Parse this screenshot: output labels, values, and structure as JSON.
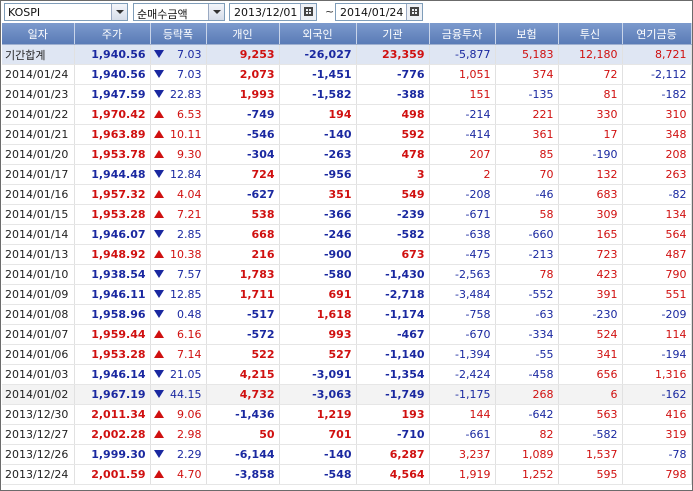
{
  "toolbar": {
    "market": "KOSPI",
    "metric": "순매수금액",
    "date_from": "2013/12/01",
    "date_to": "2014/01/24",
    "range_separator": "~"
  },
  "columns": [
    "일자",
    "주가",
    "등락폭",
    "개인",
    "외국인",
    "기관",
    "금융투자",
    "보험",
    "투신",
    "연기금등"
  ],
  "summary": {
    "label": "기간합계",
    "price": "1,940.56",
    "dir": "down",
    "change": "7.03",
    "individual": "9,253",
    "foreign": "-26,027",
    "institution": "23,359",
    "fin": "-5,877",
    "insurance": "5,183",
    "trust": "12,180",
    "pension": "8,721"
  },
  "rows": [
    {
      "date": "2014/01/24",
      "price": "1,940.56",
      "dir": "down",
      "change": "7.03",
      "individual": "2,073",
      "foreign": "-1,451",
      "institution": "-776",
      "fin": "1,051",
      "insurance": "374",
      "trust": "72",
      "pension": "-2,112"
    },
    {
      "date": "2014/01/23",
      "price": "1,947.59",
      "dir": "down",
      "change": "22.83",
      "individual": "1,993",
      "foreign": "-1,582",
      "institution": "-388",
      "fin": "151",
      "insurance": "-135",
      "trust": "81",
      "pension": "-182"
    },
    {
      "date": "2014/01/22",
      "price": "1,970.42",
      "dir": "up",
      "change": "6.53",
      "individual": "-749",
      "foreign": "194",
      "institution": "498",
      "fin": "-214",
      "insurance": "221",
      "trust": "330",
      "pension": "310"
    },
    {
      "date": "2014/01/21",
      "price": "1,963.89",
      "dir": "up",
      "change": "10.11",
      "individual": "-546",
      "foreign": "-140",
      "institution": "592",
      "fin": "-414",
      "insurance": "361",
      "trust": "17",
      "pension": "348"
    },
    {
      "date": "2014/01/20",
      "price": "1,953.78",
      "dir": "up",
      "change": "9.30",
      "individual": "-304",
      "foreign": "-263",
      "institution": "478",
      "fin": "207",
      "insurance": "85",
      "trust": "-190",
      "pension": "208"
    },
    {
      "date": "2014/01/17",
      "price": "1,944.48",
      "dir": "down",
      "change": "12.84",
      "individual": "724",
      "foreign": "-956",
      "institution": "3",
      "fin": "2",
      "insurance": "70",
      "trust": "132",
      "pension": "263"
    },
    {
      "date": "2014/01/16",
      "price": "1,957.32",
      "dir": "up",
      "change": "4.04",
      "individual": "-627",
      "foreign": "351",
      "institution": "549",
      "fin": "-208",
      "insurance": "-46",
      "trust": "683",
      "pension": "-82"
    },
    {
      "date": "2014/01/15",
      "price": "1,953.28",
      "dir": "up",
      "change": "7.21",
      "individual": "538",
      "foreign": "-366",
      "institution": "-239",
      "fin": "-671",
      "insurance": "58",
      "trust": "309",
      "pension": "134"
    },
    {
      "date": "2014/01/14",
      "price": "1,946.07",
      "dir": "down",
      "change": "2.85",
      "individual": "668",
      "foreign": "-246",
      "institution": "-582",
      "fin": "-638",
      "insurance": "-660",
      "trust": "165",
      "pension": "564"
    },
    {
      "date": "2014/01/13",
      "price": "1,948.92",
      "dir": "up",
      "change": "10.38",
      "individual": "216",
      "foreign": "-900",
      "institution": "673",
      "fin": "-475",
      "insurance": "-213",
      "trust": "723",
      "pension": "487"
    },
    {
      "date": "2014/01/10",
      "price": "1,938.54",
      "dir": "down",
      "change": "7.57",
      "individual": "1,783",
      "foreign": "-580",
      "institution": "-1,430",
      "fin": "-2,563",
      "insurance": "78",
      "trust": "423",
      "pension": "790"
    },
    {
      "date": "2014/01/09",
      "price": "1,946.11",
      "dir": "down",
      "change": "12.85",
      "individual": "1,711",
      "foreign": "691",
      "institution": "-2,718",
      "fin": "-3,484",
      "insurance": "-552",
      "trust": "391",
      "pension": "551"
    },
    {
      "date": "2014/01/08",
      "price": "1,958.96",
      "dir": "down",
      "change": "0.48",
      "individual": "-517",
      "foreign": "1,618",
      "institution": "-1,174",
      "fin": "-758",
      "insurance": "-63",
      "trust": "-230",
      "pension": "-209"
    },
    {
      "date": "2014/01/07",
      "price": "1,959.44",
      "dir": "up",
      "change": "6.16",
      "individual": "-572",
      "foreign": "993",
      "institution": "-467",
      "fin": "-670",
      "insurance": "-334",
      "trust": "524",
      "pension": "114"
    },
    {
      "date": "2014/01/06",
      "price": "1,953.28",
      "dir": "up",
      "change": "7.14",
      "individual": "522",
      "foreign": "527",
      "institution": "-1,140",
      "fin": "-1,394",
      "insurance": "-55",
      "trust": "341",
      "pension": "-194"
    },
    {
      "date": "2014/01/03",
      "price": "1,946.14",
      "dir": "down",
      "change": "21.05",
      "individual": "4,215",
      "foreign": "-3,091",
      "institution": "-1,354",
      "fin": "-2,424",
      "insurance": "-458",
      "trust": "656",
      "pension": "1,316"
    },
    {
      "date": "2014/01/02",
      "price": "1,967.19",
      "dir": "down",
      "change": "44.15",
      "individual": "4,732",
      "foreign": "-3,063",
      "institution": "-1,749",
      "fin": "-1,175",
      "insurance": "268",
      "trust": "6",
      "pension": "-162"
    },
    {
      "date": "2013/12/30",
      "price": "2,011.34",
      "dir": "up",
      "change": "9.06",
      "individual": "-1,436",
      "foreign": "1,219",
      "institution": "193",
      "fin": "144",
      "insurance": "-642",
      "trust": "563",
      "pension": "416"
    },
    {
      "date": "2013/12/27",
      "price": "2,002.28",
      "dir": "up",
      "change": "2.98",
      "individual": "50",
      "foreign": "701",
      "institution": "-710",
      "fin": "-661",
      "insurance": "82",
      "trust": "-582",
      "pension": "319"
    },
    {
      "date": "2013/12/26",
      "price": "1,999.30",
      "dir": "down",
      "change": "2.29",
      "individual": "-6,144",
      "foreign": "-140",
      "institution": "6,287",
      "fin": "3,237",
      "insurance": "1,089",
      "trust": "1,537",
      "pension": "-78"
    },
    {
      "date": "2013/12/24",
      "price": "2,001.59",
      "dir": "up",
      "change": "4.70",
      "individual": "-3,858",
      "foreign": "-548",
      "institution": "4,564",
      "fin": "1,919",
      "insurance": "1,252",
      "trust": "595",
      "pension": "798"
    }
  ],
  "colors": {
    "up": "#d01010",
    "down": "#1a28a0",
    "header": "#6a8ac2",
    "summary_bg": "#dfe6f3"
  }
}
